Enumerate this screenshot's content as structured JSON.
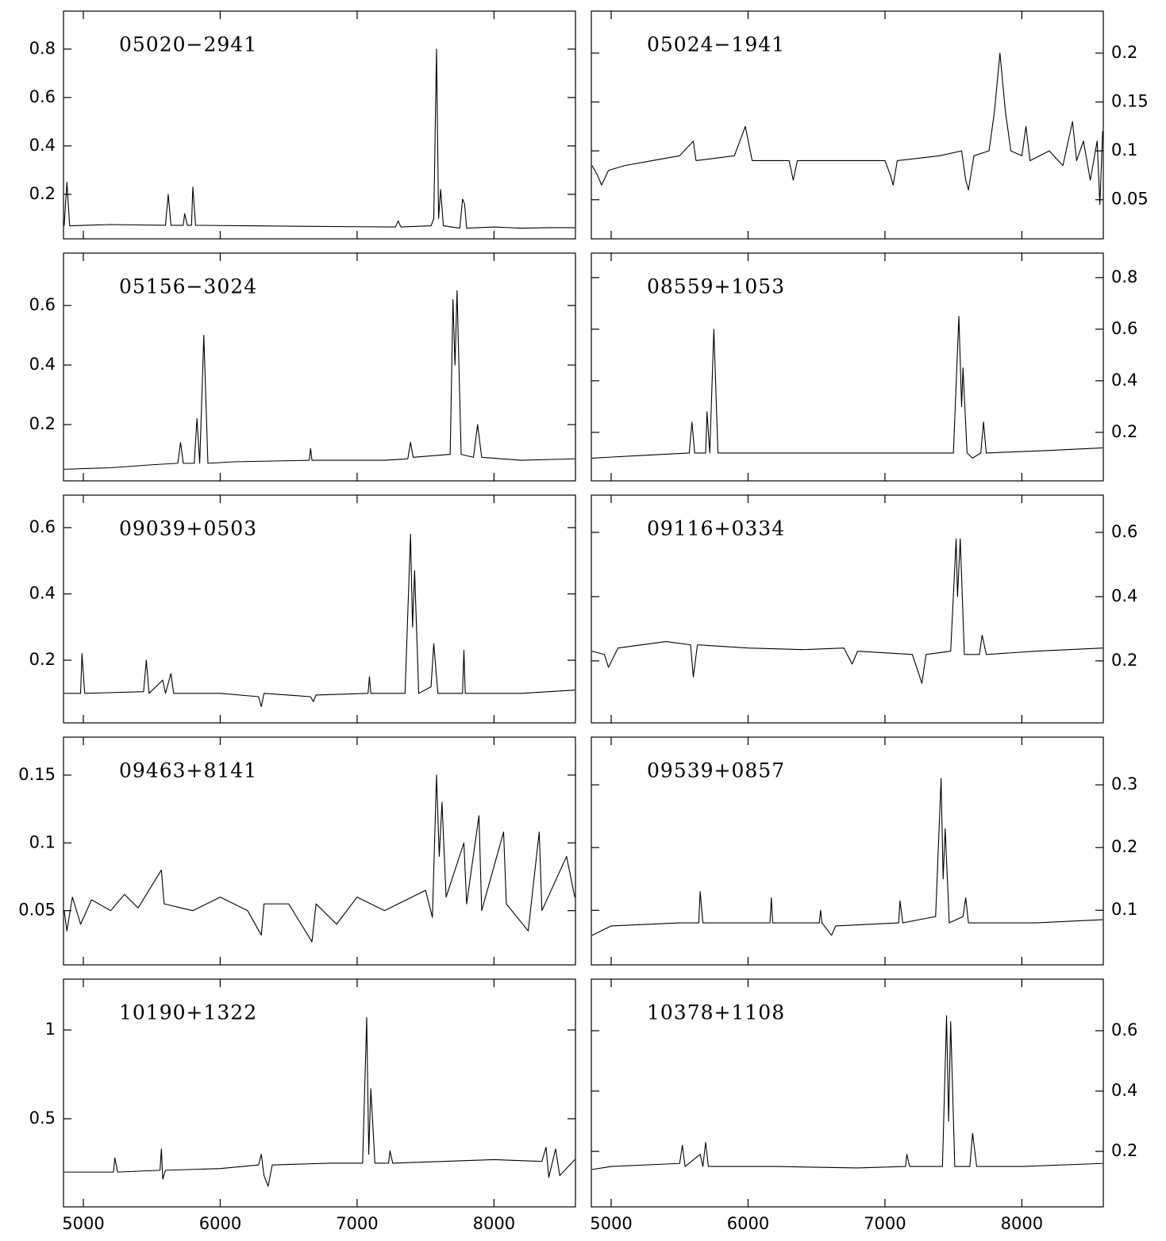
{
  "chart_data": [
    {
      "type": "line",
      "title": "05020−2941",
      "color": "#000000",
      "yaxis_side": "left",
      "xlim": [
        4855,
        8595
      ],
      "xticks": [
        5000,
        6000,
        7000,
        8000
      ],
      "ylim": [
        0.016,
        0.957
      ],
      "yticks": [
        0.2,
        0.4,
        0.6,
        0.8
      ],
      "x": [
        4860,
        4880,
        4900,
        5200,
        5600,
        5620,
        5640,
        5730,
        5740,
        5760,
        5790,
        5800,
        5820,
        6200,
        6600,
        7000,
        7280,
        7300,
        7320,
        7540,
        7560,
        7580,
        7595,
        7610,
        7630,
        7750,
        7770,
        7785,
        7800,
        8000,
        8200,
        8400,
        8590
      ],
      "values": [
        0.07,
        0.25,
        0.07,
        0.075,
        0.072,
        0.2,
        0.072,
        0.072,
        0.12,
        0.072,
        0.072,
        0.23,
        0.072,
        0.07,
        0.068,
        0.066,
        0.065,
        0.09,
        0.065,
        0.07,
        0.1,
        0.8,
        0.1,
        0.22,
        0.07,
        0.06,
        0.18,
        0.16,
        0.06,
        0.065,
        0.06,
        0.062,
        0.062
      ]
    },
    {
      "type": "line",
      "title": "05024−1941",
      "color": "#000000",
      "yaxis_side": "right",
      "xlim": [
        4855,
        8595
      ],
      "xticks": [
        5000,
        6000,
        7000,
        8000
      ],
      "ylim": [
        0.01,
        0.243
      ],
      "yticks": [
        0.05,
        0.1,
        0.15,
        0.2
      ],
      "x": [
        4860,
        4900,
        4930,
        4980,
        5100,
        5300,
        5500,
        5600,
        5620,
        5900,
        5980,
        6030,
        6300,
        6330,
        6360,
        6700,
        7000,
        7040,
        7060,
        7090,
        7400,
        7560,
        7590,
        7610,
        7650,
        7760,
        7800,
        7840,
        7880,
        7920,
        8000,
        8030,
        8060,
        8200,
        8300,
        8370,
        8400,
        8450,
        8500,
        8550,
        8570,
        8590
      ],
      "values": [
        0.085,
        0.075,
        0.065,
        0.08,
        0.085,
        0.09,
        0.095,
        0.11,
        0.09,
        0.095,
        0.125,
        0.09,
        0.09,
        0.07,
        0.09,
        0.09,
        0.09,
        0.075,
        0.065,
        0.09,
        0.095,
        0.1,
        0.07,
        0.06,
        0.095,
        0.1,
        0.14,
        0.2,
        0.14,
        0.1,
        0.095,
        0.125,
        0.09,
        0.1,
        0.085,
        0.13,
        0.09,
        0.11,
        0.07,
        0.11,
        0.045,
        0.12
      ]
    },
    {
      "type": "line",
      "title": "05156−3024",
      "color": "#000000",
      "yaxis_side": "left",
      "xlim": [
        4855,
        8595
      ],
      "xticks": [
        5000,
        6000,
        7000,
        8000
      ],
      "ylim": [
        0.011,
        0.776
      ],
      "yticks": [
        0.2,
        0.4,
        0.6
      ],
      "x": [
        4860,
        5200,
        5500,
        5690,
        5710,
        5730,
        5810,
        5830,
        5850,
        5880,
        5910,
        6100,
        6650,
        6660,
        6670,
        7200,
        7370,
        7390,
        7410,
        7680,
        7700,
        7715,
        7730,
        7760,
        7850,
        7880,
        7910,
        8200,
        8590
      ],
      "values": [
        0.05,
        0.055,
        0.065,
        0.07,
        0.14,
        0.07,
        0.07,
        0.22,
        0.07,
        0.5,
        0.07,
        0.075,
        0.08,
        0.12,
        0.08,
        0.08,
        0.085,
        0.14,
        0.09,
        0.1,
        0.62,
        0.4,
        0.65,
        0.1,
        0.09,
        0.2,
        0.09,
        0.08,
        0.085
      ]
    },
    {
      "type": "line",
      "title": "08559+1053",
      "color": "#000000",
      "yaxis_side": "right",
      "xlim": [
        4855,
        8595
      ],
      "xticks": [
        5000,
        6000,
        7000,
        8000
      ],
      "ylim": [
        0.012,
        0.895
      ],
      "yticks": [
        0.2,
        0.4,
        0.6,
        0.8
      ],
      "x": [
        4860,
        5200,
        5570,
        5590,
        5610,
        5690,
        5700,
        5720,
        5750,
        5780,
        6200,
        6800,
        7240,
        7500,
        7540,
        7560,
        7570,
        7600,
        7640,
        7700,
        7720,
        7740,
        8200,
        8590
      ],
      "values": [
        0.1,
        0.11,
        0.12,
        0.24,
        0.12,
        0.12,
        0.28,
        0.12,
        0.6,
        0.12,
        0.12,
        0.12,
        0.12,
        0.12,
        0.65,
        0.3,
        0.45,
        0.12,
        0.1,
        0.12,
        0.24,
        0.12,
        0.13,
        0.14
      ]
    },
    {
      "type": "line",
      "title": "09039+0503",
      "color": "#000000",
      "yaxis_side": "left",
      "xlim": [
        4855,
        8595
      ],
      "xticks": [
        5000,
        6000,
        7000,
        8000
      ],
      "ylim": [
        0.011,
        0.698
      ],
      "yticks": [
        0.2,
        0.4,
        0.6
      ],
      "x": [
        4860,
        4980,
        4990,
        5010,
        5440,
        5460,
        5480,
        5580,
        5600,
        5640,
        5660,
        6000,
        6280,
        6300,
        6320,
        6660,
        6680,
        6700,
        7080,
        7090,
        7100,
        7350,
        7390,
        7405,
        7420,
        7450,
        7540,
        7560,
        7590,
        7770,
        7780,
        7790,
        8200,
        8590
      ],
      "values": [
        0.1,
        0.1,
        0.22,
        0.1,
        0.105,
        0.2,
        0.1,
        0.14,
        0.1,
        0.16,
        0.1,
        0.1,
        0.09,
        0.06,
        0.1,
        0.09,
        0.075,
        0.095,
        0.1,
        0.15,
        0.1,
        0.1,
        0.58,
        0.3,
        0.47,
        0.1,
        0.12,
        0.25,
        0.1,
        0.1,
        0.23,
        0.1,
        0.1,
        0.11
      ]
    },
    {
      "type": "line",
      "title": "09116+0334",
      "color": "#000000",
      "yaxis_side": "right",
      "xlim": [
        4855,
        8595
      ],
      "xticks": [
        5000,
        6000,
        7000,
        8000
      ],
      "ylim": [
        0.007,
        0.716
      ],
      "yticks": [
        0.2,
        0.4,
        0.6
      ],
      "x": [
        4860,
        4950,
        4980,
        5050,
        5400,
        5580,
        5600,
        5630,
        6000,
        6400,
        6700,
        6760,
        6800,
        7200,
        7270,
        7300,
        7480,
        7520,
        7530,
        7550,
        7580,
        7690,
        7710,
        7740,
        8100,
        8590
      ],
      "values": [
        0.23,
        0.22,
        0.18,
        0.24,
        0.26,
        0.25,
        0.15,
        0.25,
        0.24,
        0.235,
        0.24,
        0.19,
        0.23,
        0.22,
        0.13,
        0.22,
        0.23,
        0.58,
        0.4,
        0.58,
        0.22,
        0.22,
        0.28,
        0.22,
        0.23,
        0.24
      ]
    },
    {
      "type": "line",
      "title": "09463+8141",
      "color": "#000000",
      "yaxis_side": "left",
      "xlim": [
        4855,
        8595
      ],
      "xticks": [
        5000,
        6000,
        7000,
        8000
      ],
      "ylim": [
        0.01,
        0.178
      ],
      "yticks": [
        0.05,
        0.1,
        0.15
      ],
      "x": [
        4860,
        4880,
        4920,
        4980,
        5060,
        5200,
        5300,
        5400,
        5570,
        5590,
        5800,
        6000,
        6200,
        6300,
        6320,
        6500,
        6670,
        6700,
        6850,
        7000,
        7200,
        7400,
        7500,
        7550,
        7580,
        7600,
        7620,
        7650,
        7780,
        7800,
        7890,
        7910,
        8070,
        8090,
        8250,
        8330,
        8350,
        8530,
        8590
      ],
      "values": [
        0.05,
        0.035,
        0.06,
        0.04,
        0.058,
        0.05,
        0.062,
        0.052,
        0.08,
        0.055,
        0.05,
        0.06,
        0.05,
        0.032,
        0.055,
        0.055,
        0.027,
        0.055,
        0.04,
        0.06,
        0.05,
        0.06,
        0.065,
        0.045,
        0.15,
        0.09,
        0.13,
        0.06,
        0.1,
        0.055,
        0.12,
        0.05,
        0.108,
        0.055,
        0.035,
        0.108,
        0.05,
        0.09,
        0.06
      ]
    },
    {
      "type": "line",
      "title": "09539+0857",
      "color": "#000000",
      "yaxis_side": "right",
      "xlim": [
        4855,
        8595
      ],
      "xticks": [
        5000,
        6000,
        7000,
        8000
      ],
      "ylim": [
        0.013,
        0.376
      ],
      "yticks": [
        0.1,
        0.2,
        0.3
      ],
      "x": [
        4860,
        5000,
        5500,
        5640,
        5650,
        5670,
        6160,
        6170,
        6180,
        6520,
        6530,
        6540,
        6610,
        6640,
        7100,
        7110,
        7130,
        7370,
        7410,
        7425,
        7440,
        7470,
        7570,
        7590,
        7610,
        8100,
        8590
      ],
      "values": [
        0.06,
        0.075,
        0.08,
        0.08,
        0.13,
        0.08,
        0.08,
        0.12,
        0.08,
        0.08,
        0.1,
        0.08,
        0.06,
        0.075,
        0.08,
        0.115,
        0.08,
        0.09,
        0.31,
        0.15,
        0.23,
        0.08,
        0.09,
        0.12,
        0.08,
        0.08,
        0.085
      ]
    },
    {
      "type": "line",
      "title": "10190+1322",
      "color": "#000000",
      "yaxis_side": "left",
      "xlim": [
        4855,
        8595
      ],
      "xticks": [
        5000,
        6000,
        7000,
        8000
      ],
      "ylim": [
        0.004,
        1.286
      ],
      "yticks": [
        0.5,
        1
      ],
      "x": [
        4860,
        5220,
        5230,
        5250,
        5560,
        5570,
        5580,
        5600,
        6000,
        6280,
        6300,
        6320,
        6350,
        6380,
        6800,
        7040,
        7070,
        7085,
        7100,
        7130,
        7230,
        7240,
        7260,
        8000,
        8350,
        8380,
        8400,
        8450,
        8480,
        8590
      ],
      "values": [
        0.2,
        0.2,
        0.28,
        0.2,
        0.21,
        0.33,
        0.16,
        0.21,
        0.22,
        0.24,
        0.3,
        0.18,
        0.12,
        0.24,
        0.25,
        0.25,
        1.07,
        0.3,
        0.67,
        0.25,
        0.25,
        0.32,
        0.25,
        0.27,
        0.26,
        0.34,
        0.17,
        0.33,
        0.18,
        0.27
      ]
    },
    {
      "type": "line",
      "title": "10378+1108",
      "color": "#000000",
      "yaxis_side": "right",
      "xlim": [
        4855,
        8595
      ],
      "xticks": [
        5000,
        6000,
        7000,
        8000
      ],
      "ylim": [
        0.016,
        0.771
      ],
      "yticks": [
        0.2,
        0.4,
        0.6
      ],
      "x": [
        4860,
        5000,
        5500,
        5520,
        5540,
        5650,
        5670,
        5690,
        5710,
        6200,
        6800,
        7150,
        7160,
        7180,
        7420,
        7450,
        7465,
        7480,
        7510,
        7620,
        7640,
        7670,
        8000,
        8590
      ],
      "values": [
        0.14,
        0.15,
        0.16,
        0.22,
        0.15,
        0.19,
        0.15,
        0.23,
        0.15,
        0.15,
        0.145,
        0.15,
        0.19,
        0.15,
        0.15,
        0.65,
        0.3,
        0.63,
        0.15,
        0.15,
        0.26,
        0.15,
        0.15,
        0.16
      ]
    }
  ]
}
